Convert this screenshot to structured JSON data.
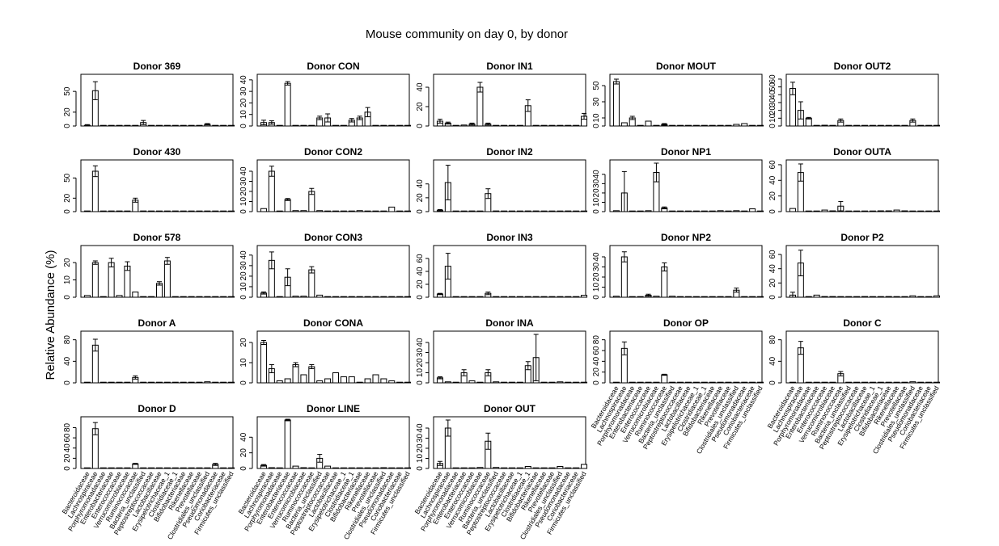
{
  "chart_data": {
    "type": "bar",
    "title": "Mouse community on day 0, by donor",
    "ylabel": "Relative Abundance (%)",
    "xlabel": "",
    "error_bars": true,
    "categories": [
      "Bacteroidaceae",
      "Lachnospiraceae",
      "Porphyromonadaceae",
      "Enterobacteriaceae",
      "Enterococcaceae",
      "Verrucomicrobiaceae",
      "Ruminococcaceae",
      "Bacteria_unclassified",
      "Peptostreptococcaceae",
      "Lactobacillaceae",
      "Erysipelotrichaceae_1",
      "Clostridiaceae_1",
      "Bifidobacteriaceae",
      "Rikenellaceae",
      "Prevotellaceae",
      "Clostridiales_unclassified",
      "Pseudomonadaceae",
      "Coriobacteriaceae",
      "Firmicutes_unclassified"
    ],
    "panels": [
      {
        "title": "Donor 369",
        "yticks": [
          "0",
          "20",
          "50"
        ],
        "ylim": [
          0,
          70
        ],
        "values": [
          1,
          51,
          0,
          0.5,
          0.5,
          0.5,
          0,
          5,
          0,
          0,
          0,
          0,
          0,
          0,
          0,
          2.5,
          0,
          0,
          0
        ],
        "errors": [
          1,
          13,
          0,
          0,
          0,
          0,
          0,
          3,
          0,
          0,
          0,
          0,
          0,
          0,
          0,
          1,
          0,
          0,
          0
        ]
      },
      {
        "title": "Donor CON",
        "yticks": [
          "0",
          "10",
          "20",
          "30",
          "40"
        ],
        "ylim": [
          0,
          42
        ],
        "values": [
          3,
          3,
          0,
          37,
          0,
          0,
          0,
          7,
          7,
          0,
          0,
          5,
          7,
          12,
          0,
          0,
          0,
          0,
          0
        ],
        "errors": [
          2,
          1.5,
          0,
          1.5,
          0,
          0,
          0,
          1.5,
          3.5,
          0,
          0,
          1.5,
          1.5,
          4,
          0,
          0,
          0,
          0,
          0
        ],
        "noaxis_values": true
      },
      {
        "title": "Donor IN1",
        "yticks": [
          "0",
          "20",
          "40"
        ],
        "ylim": [
          0,
          50
        ],
        "values": [
          5,
          3,
          0,
          1,
          2,
          40,
          2,
          0,
          0,
          0,
          0,
          21,
          0,
          0,
          0,
          0,
          0,
          0,
          10
        ],
        "errors": [
          2,
          1,
          0,
          0,
          1,
          5,
          1,
          0,
          0,
          0,
          0,
          6,
          0,
          0,
          0,
          0,
          0,
          0,
          3
        ]
      },
      {
        "title": "Donor MOUT",
        "yticks": [
          "0",
          "10",
          "30",
          "50"
        ],
        "ylim": [
          0,
          60
        ],
        "values": [
          55,
          4,
          10,
          0,
          6,
          0,
          2,
          0,
          0,
          0,
          0,
          0,
          0,
          0,
          0,
          2,
          3,
          0,
          0
        ],
        "errors": [
          3,
          0,
          2,
          0,
          0,
          0,
          1,
          0,
          0,
          0,
          0,
          0,
          0,
          0,
          0,
          0,
          0,
          0,
          0
        ]
      },
      {
        "title": "Donor OUT2",
        "yticks": [
          "0",
          "10",
          "20",
          "30",
          "40",
          "50",
          "60"
        ],
        "ylim": [
          0,
          62
        ],
        "values": [
          48,
          20,
          10,
          0,
          1,
          0,
          7,
          0,
          0,
          0,
          0,
          0,
          0,
          0,
          0,
          7,
          0,
          0,
          0
        ],
        "errors": [
          8,
          11,
          1,
          0,
          0,
          0,
          2,
          0,
          0,
          0,
          0,
          0,
          0,
          0,
          0,
          2,
          0,
          0,
          0
        ]
      },
      {
        "title": "Donor 430",
        "yticks": [
          "0",
          "20",
          "50"
        ],
        "ylim": [
          0,
          72
        ],
        "values": [
          1,
          60,
          0,
          1,
          1,
          0,
          17,
          1,
          0,
          0,
          0,
          1,
          0,
          0,
          0,
          0,
          0,
          0,
          0
        ],
        "errors": [
          0,
          8,
          0,
          0,
          0,
          0,
          3,
          0,
          0,
          0,
          0,
          0,
          0,
          0,
          0,
          0,
          0,
          0,
          0
        ]
      },
      {
        "title": "Donor CON2",
        "yticks": [
          "0",
          "10",
          "20",
          "30",
          "40"
        ],
        "ylim": [
          0,
          48
        ],
        "values": [
          3,
          40,
          0,
          12,
          1,
          1,
          20,
          1,
          0,
          0,
          0,
          0,
          1,
          0,
          0,
          0,
          4.5,
          0,
          0
        ],
        "errors": [
          0,
          5,
          0,
          1,
          0,
          0,
          3,
          0,
          0,
          0,
          0,
          0,
          0,
          0,
          0,
          0,
          0,
          0,
          0
        ]
      },
      {
        "title": "Donor IN2",
        "yticks": [
          "0",
          "20",
          "40"
        ],
        "ylim": [
          0,
          70
        ],
        "values": [
          2,
          42,
          0,
          0,
          1,
          0,
          26,
          1,
          0,
          0,
          0,
          1,
          1,
          0,
          0,
          0,
          1,
          0,
          0
        ],
        "errors": [
          1,
          25,
          0,
          0,
          0,
          0,
          7,
          0,
          0,
          0,
          0,
          0,
          0,
          0,
          0,
          0,
          0,
          0,
          0
        ]
      },
      {
        "title": "Donor NP1",
        "yticks": [
          "0",
          "10",
          "20",
          "30",
          "40"
        ],
        "ylim": [
          0,
          52
        ],
        "values": [
          1,
          20,
          0,
          0,
          1,
          42,
          4,
          0,
          0,
          0,
          0,
          0,
          0,
          1,
          0,
          1,
          0,
          3,
          0
        ],
        "errors": [
          0,
          23,
          0,
          0,
          0,
          10,
          1,
          0,
          0,
          0,
          0,
          0,
          0,
          0,
          0,
          0,
          0,
          0,
          0
        ]
      },
      {
        "title": "Donor OUTA",
        "yticks": [
          "0",
          "20",
          "40",
          "60"
        ],
        "ylim": [
          0,
          62
        ],
        "values": [
          4,
          50,
          0,
          0,
          2,
          1,
          7,
          0,
          0,
          0,
          0,
          1,
          1,
          2,
          1,
          0,
          0,
          0,
          0
        ],
        "errors": [
          0,
          11,
          0,
          0,
          0,
          0,
          6,
          0,
          0,
          0,
          0,
          0,
          0,
          0,
          0,
          0,
          0,
          0,
          0
        ]
      },
      {
        "title": "Donor 578",
        "yticks": [
          "0",
          "10",
          "20"
        ],
        "ylim": [
          0,
          28
        ],
        "values": [
          1,
          20,
          0,
          20,
          1,
          18,
          3,
          0,
          0,
          8,
          21,
          0,
          0,
          0,
          0,
          0,
          0,
          0,
          0
        ],
        "errors": [
          0,
          1,
          0,
          2.5,
          0,
          2.5,
          0,
          0,
          0,
          1,
          2,
          0,
          0,
          0,
          0,
          0,
          0,
          0,
          0
        ]
      },
      {
        "title": "Donor CON3",
        "yticks": [
          "0",
          "10",
          "20",
          "30",
          "40"
        ],
        "ylim": [
          0,
          46
        ],
        "values": [
          4,
          35,
          0,
          19,
          1,
          1,
          26,
          2,
          0,
          0,
          0,
          0,
          0,
          0,
          0,
          0,
          0,
          0,
          0
        ],
        "errors": [
          1,
          8,
          0,
          8,
          0,
          0,
          3,
          0,
          0,
          0,
          0,
          0,
          0,
          0,
          0,
          0,
          0,
          0,
          0
        ]
      },
      {
        "title": "Donor IN3",
        "yticks": [
          "0",
          "20",
          "40",
          "60"
        ],
        "ylim": [
          0,
          75
        ],
        "values": [
          5,
          48,
          0,
          0,
          1,
          0,
          6,
          1,
          0,
          0,
          0,
          0,
          0,
          0,
          0,
          0,
          0,
          0,
          3
        ],
        "errors": [
          1,
          20,
          0,
          0,
          0,
          0,
          2,
          0,
          0,
          0,
          0,
          0,
          0,
          0,
          0,
          0,
          0,
          0,
          0
        ]
      },
      {
        "title": "Donor NP2",
        "yticks": [
          "0",
          "10",
          "20",
          "30",
          "40"
        ],
        "ylim": [
          0,
          48
        ],
        "values": [
          1,
          40,
          0,
          0,
          2,
          1,
          30,
          1,
          0,
          0,
          0,
          0,
          0,
          0,
          0,
          7,
          0,
          0,
          0
        ],
        "errors": [
          0,
          5,
          0,
          0,
          1,
          0,
          4,
          0,
          0,
          0,
          0,
          0,
          0,
          0,
          0,
          2,
          0,
          0,
          0
        ]
      },
      {
        "title": "Donor P2",
        "yticks": [
          "0",
          "20",
          "40",
          "60"
        ],
        "ylim": [
          0,
          68
        ],
        "values": [
          3,
          48,
          0,
          3,
          1,
          1,
          0,
          0,
          0,
          1,
          0,
          0,
          1,
          0,
          0,
          2,
          0,
          0,
          2
        ],
        "errors": [
          4,
          18,
          0,
          0,
          0,
          0,
          0,
          0,
          0,
          0,
          0,
          0,
          0,
          0,
          0,
          0,
          0,
          0,
          0
        ]
      },
      {
        "title": "Donor A",
        "yticks": [
          "0",
          "40",
          "80"
        ],
        "ylim": [
          0,
          90
        ],
        "values": [
          1,
          70,
          0,
          0,
          0,
          0,
          10,
          0,
          0,
          0,
          0,
          0,
          0,
          0,
          0,
          2,
          0,
          0,
          0
        ],
        "errors": [
          0,
          11,
          0,
          0,
          0,
          0,
          3,
          0,
          0,
          0,
          0,
          0,
          0,
          0,
          0,
          0,
          0,
          0,
          0
        ]
      },
      {
        "title": "Donor CONA",
        "yticks": [
          "0",
          "10",
          "20"
        ],
        "ylim": [
          0,
          24
        ],
        "values": [
          20,
          7,
          1,
          2,
          9,
          4,
          8,
          1,
          2,
          5,
          3,
          3,
          0,
          2,
          4,
          2,
          1,
          0,
          0
        ],
        "errors": [
          1,
          2,
          0,
          0,
          1,
          0,
          1,
          0,
          0,
          0,
          0,
          0,
          0,
          0,
          0,
          0,
          0,
          0,
          0
        ]
      },
      {
        "title": "Donor INA",
        "yticks": [
          "0",
          "10",
          "20",
          "30",
          "40"
        ],
        "ylim": [
          0,
          48
        ],
        "values": [
          5,
          1,
          0,
          10,
          2,
          0,
          10,
          1,
          0,
          0,
          0,
          17,
          25,
          0,
          0,
          1,
          0,
          0,
          0
        ],
        "errors": [
          1,
          0,
          0,
          3,
          0,
          0,
          3,
          0,
          0,
          0,
          0,
          4,
          23,
          0,
          0,
          0,
          0,
          0,
          0
        ]
      },
      {
        "title": "Donor OP",
        "yticks": [
          "0",
          "20",
          "40",
          "60",
          "80"
        ],
        "ylim": [
          0,
          90
        ],
        "values": [
          1,
          64,
          0,
          0,
          1,
          0,
          15,
          0,
          0,
          0,
          0,
          0,
          0,
          0,
          0,
          0,
          0,
          0,
          0
        ],
        "errors": [
          0,
          12,
          0,
          0,
          0,
          0,
          1,
          0,
          0,
          0,
          0,
          0,
          0,
          0,
          0,
          0,
          0,
          0,
          0
        ]
      },
      {
        "title": "Donor C",
        "yticks": [
          "0",
          "40",
          "80"
        ],
        "ylim": [
          0,
          90
        ],
        "values": [
          0,
          65,
          0,
          0,
          0,
          0,
          17,
          0,
          0,
          0,
          0,
          1,
          0,
          0,
          0,
          2,
          0,
          0,
          0
        ],
        "errors": [
          0,
          12,
          0,
          0,
          0,
          0,
          4,
          0,
          0,
          0,
          0,
          0,
          0,
          0,
          0,
          0,
          0,
          0,
          0
        ]
      },
      {
        "title": "Donor D",
        "yticks": [
          "0",
          "20",
          "40",
          "60",
          "80"
        ],
        "ylim": [
          0,
          95
        ],
        "values": [
          0,
          78,
          0,
          0,
          0,
          0,
          9,
          0,
          0,
          0,
          0,
          1,
          1,
          0,
          0,
          0,
          8,
          0,
          0
        ],
        "errors": [
          0,
          12,
          0,
          0,
          0,
          0,
          1,
          0,
          0,
          0,
          0,
          0,
          0,
          0,
          0,
          0,
          2,
          0,
          0
        ]
      },
      {
        "title": "Donor LINE",
        "yticks": [
          "0",
          "20",
          "40"
        ],
        "ylim": [
          0,
          62
        ],
        "values": [
          4,
          1,
          0,
          62,
          3,
          1,
          0,
          13,
          3,
          0,
          0,
          0,
          0,
          0,
          0,
          1,
          0,
          0,
          0
        ],
        "errors": [
          1,
          0,
          0,
          1,
          0,
          0,
          0,
          5,
          0,
          0,
          0,
          0,
          0,
          0,
          0,
          0,
          0,
          0,
          0
        ]
      },
      {
        "title": "Donor OUT",
        "yticks": [
          "0",
          "10",
          "20",
          "30",
          "40"
        ],
        "ylim": [
          0,
          48
        ],
        "values": [
          5,
          40,
          0,
          0,
          0,
          1,
          27,
          1,
          0,
          0,
          0,
          2,
          0,
          0,
          0,
          2,
          0,
          0,
          4
        ],
        "errors": [
          2,
          8,
          0,
          0,
          0,
          0,
          8,
          0,
          0,
          0,
          0,
          0,
          0,
          0,
          0,
          0,
          0,
          0,
          0
        ]
      }
    ]
  }
}
